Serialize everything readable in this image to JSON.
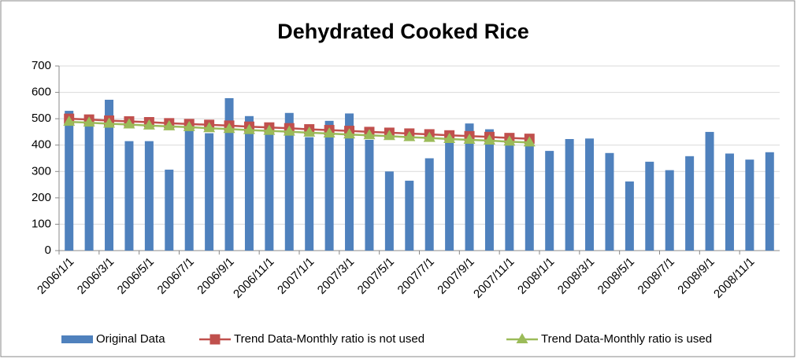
{
  "chart_data": {
    "type": "bar",
    "title": "Dehydrated Cooked Rice",
    "categories": [
      "2006/1/1",
      null,
      "2006/3/1",
      null,
      "2006/5/1",
      null,
      "2006/7/1",
      null,
      "2006/9/1",
      null,
      "2006/11/1",
      null,
      "2007/1/1",
      null,
      "2007/3/1",
      null,
      "2007/5/1",
      null,
      "2007/7/1",
      null,
      "2007/9/1",
      null,
      "2007/11/1",
      null,
      "2008/1/1",
      null,
      "2008/3/1",
      null,
      "2008/5/1",
      null,
      "2008/7/1",
      null,
      "2008/9/1",
      null,
      "2008/11/1",
      null
    ],
    "series": [
      {
        "name": "Original Data",
        "type": "bar",
        "color": "#4f81bd",
        "values": [
          530,
          490,
          572,
          415,
          415,
          307,
          465,
          445,
          578,
          510,
          440,
          522,
          430,
          492,
          520,
          420,
          300,
          265,
          350,
          410,
          482,
          460,
          420,
          410,
          378,
          423,
          425,
          370,
          262,
          337,
          305,
          358,
          450,
          368,
          345,
          373
        ]
      },
      {
        "name": "Trend Data-Monthly ratio is not used",
        "type": "line",
        "marker": "square",
        "color": "#c0504d",
        "values": [
          500,
          497,
          493,
          490,
          487,
          483,
          480,
          477,
          474,
          470,
          467,
          464,
          460,
          457,
          454,
          450,
          447,
          444,
          441,
          437,
          434,
          431,
          427,
          424,
          null,
          null,
          null,
          null,
          null,
          null,
          null,
          null,
          null,
          null,
          null,
          null
        ]
      },
      {
        "name": "Trend Data-Monthly ratio is used",
        "type": "line",
        "marker": "triangle",
        "color": "#9bbb59",
        "values": [
          488,
          485,
          481,
          478,
          474,
          471,
          468,
          464,
          461,
          457,
          454,
          451,
          447,
          444,
          440,
          437,
          434,
          430,
          427,
          423,
          420,
          417,
          413,
          410,
          null,
          null,
          null,
          null,
          null,
          null,
          null,
          null,
          null,
          null,
          null,
          null
        ]
      }
    ],
    "ylim": [
      0,
      700
    ],
    "yticks": [
      0,
      100,
      200,
      300,
      400,
      500,
      600,
      700
    ],
    "grid": true,
    "legend": "bottom"
  }
}
